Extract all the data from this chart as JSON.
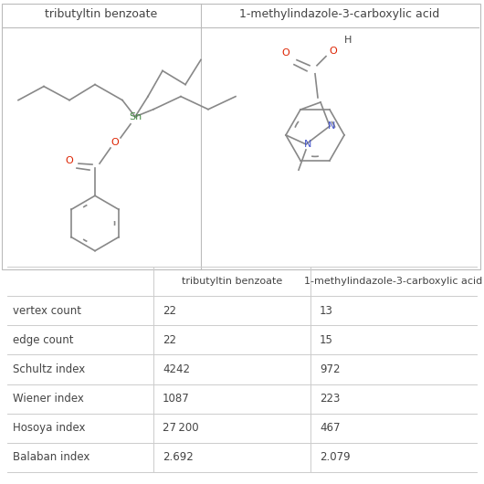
{
  "title1": "tributyltin benzoate",
  "title2": "1-methylindazole-3-carboxylic acid",
  "row_labels": [
    "vertex count",
    "edge count",
    "Schultz index",
    "Wiener index",
    "Hosoya index",
    "Balaban index"
  ],
  "col1_values": [
    "22",
    "22",
    "4242",
    "1087",
    "27 200",
    "2.692"
  ],
  "col2_values": [
    "13",
    "15",
    "972",
    "223",
    "467",
    "2.079"
  ],
  "col_header1": "tributyltin benzoate",
  "col_header2": "1-methylindazole-3-carboxylic acid",
  "bg_color": "#ffffff",
  "line_color": "#cccccc",
  "text_color": "#444444",
  "bond_color": "#888888",
  "red_color": "#dd2200",
  "blue_color": "#4455cc",
  "sn_color": "#448844"
}
